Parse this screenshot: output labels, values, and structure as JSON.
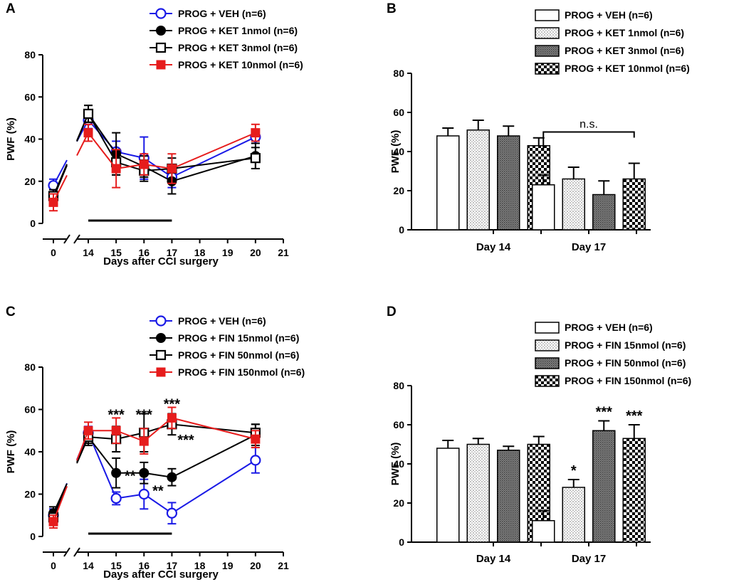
{
  "figure": {
    "panels": [
      "A",
      "B",
      "C",
      "D"
    ]
  },
  "colors": {
    "veh": "#1a1ae6",
    "low": "#000000",
    "mid": "#000000",
    "high": "#e61c1c"
  },
  "chart_data": [
    {
      "id": "A",
      "type": "line",
      "xlabel": "Days after CCI surgery",
      "ylabel": "PWF (%)",
      "ylim": [
        0,
        80
      ],
      "yticks": [
        0,
        20,
        40,
        60,
        80
      ],
      "xticks": [
        0,
        14,
        15,
        16,
        17,
        18,
        19,
        20,
        21
      ],
      "x": [
        0,
        14,
        15,
        16,
        17,
        20
      ],
      "bar_annotation": {
        "from": 14,
        "to": 17
      },
      "series": [
        {
          "name": "PROG + VEH (n=6)",
          "marker": "open-circle",
          "color": "#1a1ae6",
          "values": [
            18,
            49,
            34,
            31,
            22,
            41
          ],
          "errors": [
            3,
            4,
            5,
            10,
            5,
            3
          ]
        },
        {
          "name": "PROG + KET 1nmol (n=6)",
          "marker": "filled-circle",
          "color": "#000000",
          "values": [
            12,
            52,
            33,
            27,
            20,
            32
          ],
          "errors": [
            3,
            4,
            10,
            5,
            6,
            6
          ]
        },
        {
          "name": "PROG + KET 3nmol (n=6)",
          "marker": "open-square",
          "color": "#000000",
          "values": [
            13,
            52,
            29,
            25,
            26,
            31
          ],
          "errors": [
            3,
            4,
            6,
            5,
            5,
            5
          ]
        },
        {
          "name": "PROG + KET 10nmol (n=6)",
          "marker": "filled-square",
          "color": "#e61c1c",
          "values": [
            10,
            43,
            26,
            28,
            26,
            43
          ],
          "errors": [
            4,
            4,
            9,
            5,
            7,
            4
          ]
        }
      ]
    },
    {
      "id": "B",
      "type": "bar",
      "ylabel": "PWF (%)",
      "ylim": [
        0,
        80
      ],
      "yticks": [
        0,
        20,
        40,
        60,
        80
      ],
      "categories": [
        "Day 14",
        "Day 17"
      ],
      "annotation": "n.s.",
      "series": [
        {
          "name": "PROG + VEH (n=6)",
          "pattern": "white",
          "values": [
            48,
            23
          ],
          "errors": [
            4,
            5
          ]
        },
        {
          "name": "PROG + KET 1nmol (n=6)",
          "pattern": "dots",
          "values": [
            51,
            26
          ],
          "errors": [
            5,
            6
          ]
        },
        {
          "name": "PROG + KET 3nmol (n=6)",
          "pattern": "dense",
          "values": [
            48,
            18
          ],
          "errors": [
            5,
            7
          ]
        },
        {
          "name": "PROG + KET 10nmol (n=6)",
          "pattern": "checker",
          "values": [
            43,
            26
          ],
          "errors": [
            4,
            8
          ]
        }
      ]
    },
    {
      "id": "C",
      "type": "line",
      "xlabel": "Days after CCI surgery",
      "ylabel": "PWF (%)",
      "ylim": [
        0,
        80
      ],
      "yticks": [
        0,
        20,
        40,
        60,
        80
      ],
      "xticks": [
        0,
        14,
        15,
        16,
        17,
        18,
        19,
        20,
        21
      ],
      "x": [
        0,
        14,
        15,
        16,
        17,
        20
      ],
      "bar_annotation": {
        "from": 14,
        "to": 17
      },
      "series": [
        {
          "name": "PROG + VEH (n=6)",
          "marker": "open-circle",
          "color": "#1a1ae6",
          "values": [
            10,
            49,
            18,
            20,
            11,
            36
          ],
          "errors": [
            3,
            3,
            3,
            7,
            5,
            6
          ]
        },
        {
          "name": "PROG + FIN 15nmol (n=6)",
          "marker": "filled-circle",
          "color": "#000000",
          "values": [
            11,
            47,
            30,
            30,
            28,
            48
          ],
          "errors": [
            3,
            3,
            7,
            5,
            4,
            5
          ]
        },
        {
          "name": "PROG + FIN 50nmol (n=6)",
          "marker": "open-square",
          "color": "#000000",
          "values": [
            9,
            47,
            46,
            49,
            53,
            49
          ],
          "errors": [
            3,
            4,
            6,
            9,
            5,
            4
          ]
        },
        {
          "name": "PROG + FIN 150nmol (n=6)",
          "marker": "filled-square",
          "color": "#e61c1c",
          "values": [
            7,
            50,
            50,
            45,
            56,
            46
          ],
          "errors": [
            3,
            4,
            6,
            6,
            5,
            4
          ]
        }
      ],
      "annotations": [
        {
          "text": "***",
          "x": 15,
          "y": 58
        },
        {
          "text": "***",
          "x": 16,
          "y": 58
        },
        {
          "text": "***",
          "x": 17,
          "y": 63
        },
        {
          "text": "**",
          "x": 15.5,
          "y": 29
        },
        {
          "text": "**",
          "x": 16.5,
          "y": 22
        },
        {
          "text": "***",
          "x": 17.5,
          "y": 46
        }
      ]
    },
    {
      "id": "D",
      "type": "bar",
      "ylabel": "PWF (%)",
      "ylim": [
        0,
        80
      ],
      "yticks": [
        0,
        20,
        40,
        60,
        80
      ],
      "categories": [
        "Day 14",
        "Day 17"
      ],
      "series": [
        {
          "name": "PROG + VEH (n=6)",
          "pattern": "white",
          "values": [
            48,
            11
          ],
          "errors": [
            4,
            5
          ]
        },
        {
          "name": "PROG + FIN 15nmol (n=6)",
          "pattern": "dots",
          "values": [
            50,
            28
          ],
          "errors": [
            3,
            4
          ]
        },
        {
          "name": "PROG + FIN 50nmol (n=6)",
          "pattern": "dense",
          "values": [
            47,
            57
          ],
          "errors": [
            2,
            5
          ]
        },
        {
          "name": "PROG + FIN 150nmol (n=6)",
          "pattern": "checker",
          "values": [
            50,
            53
          ],
          "errors": [
            4,
            7
          ]
        }
      ],
      "annotations": [
        {
          "text": "*",
          "category": 1,
          "series": 1
        },
        {
          "text": "***",
          "category": 1,
          "series": 2
        },
        {
          "text": "***",
          "category": 1,
          "series": 3
        }
      ]
    }
  ]
}
